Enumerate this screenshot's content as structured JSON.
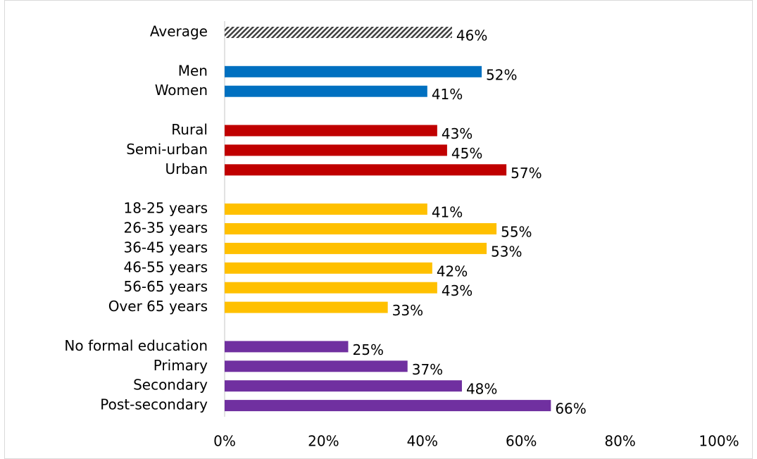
{
  "chart_data": {
    "type": "hbar",
    "categories": [
      "Average",
      null,
      "Men",
      "Women",
      null,
      "Rural",
      "Semi-urban",
      "Urban",
      null,
      "18-25 years",
      "26-35 years",
      "36-45 years",
      "46-55 years",
      "56-65 years",
      "Over 65 years",
      null,
      "No formal education",
      "Primary",
      "Secondary",
      "Post-secondary"
    ],
    "values": [
      46,
      null,
      52,
      41,
      null,
      43,
      45,
      57,
      null,
      41,
      55,
      53,
      42,
      43,
      33,
      null,
      25,
      37,
      48,
      66
    ],
    "value_labels": [
      "46%",
      null,
      "52%",
      "41%",
      null,
      "43%",
      "45%",
      "57%",
      null,
      "41%",
      "55%",
      "53%",
      "42%",
      "43%",
      "33%",
      null,
      "25%",
      "37%",
      "48%",
      "66%"
    ],
    "colors": [
      "#404040",
      null,
      "#0070c0",
      "#0070c0",
      null,
      "#c00000",
      "#c00000",
      "#c00000",
      null,
      "#ffc000",
      "#ffc000",
      "#ffc000",
      "#ffc000",
      "#ffc000",
      "#ffc000",
      null,
      "#7030a0",
      "#7030a0",
      "#7030a0",
      "#7030a0"
    ],
    "hatched": [
      0
    ],
    "xlim": [
      0,
      100
    ],
    "xticks": [
      {
        "value": 0,
        "label": "0%"
      },
      {
        "value": 20,
        "label": "20%"
      },
      {
        "value": 40,
        "label": "40%"
      },
      {
        "value": 60,
        "label": "60%"
      },
      {
        "value": 80,
        "label": "80%"
      },
      {
        "value": 100,
        "label": "100%"
      }
    ]
  }
}
